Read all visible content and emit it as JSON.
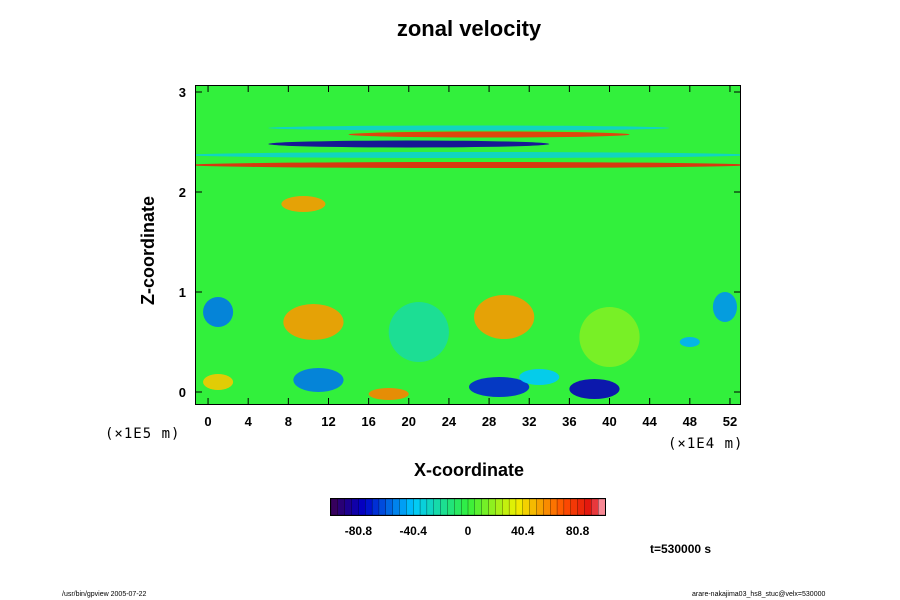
{
  "chart_data": {
    "type": "heatmap",
    "title": "zonal velocity",
    "xlabel": "X-coordinate",
    "ylabel": "Z-coordinate",
    "x_ticks": [
      "0",
      "4",
      "8",
      "12",
      "16",
      "20",
      "24",
      "28",
      "32",
      "36",
      "40",
      "44",
      "48",
      "52"
    ],
    "x_tick_values": [
      0,
      4,
      8,
      12,
      16,
      20,
      24,
      28,
      32,
      36,
      40,
      44,
      48,
      52
    ],
    "y_ticks": [
      "0",
      "1",
      "2",
      "3"
    ],
    "y_tick_values": [
      0,
      1,
      2,
      3
    ],
    "xlim": [
      -1.2,
      53
    ],
    "ylim": [
      -0.12,
      3.06
    ],
    "x_unit": "(×1E4 m)",
    "y_unit": "(×1E5 m)",
    "colorbar": {
      "labels": [
        "-80.8",
        "-40.4",
        "0",
        "40.4",
        "80.8"
      ],
      "label_values": [
        -80.8,
        -40.4,
        0,
        40.4,
        80.8
      ],
      "range": [
        -101,
        101
      ]
    },
    "background_value": 0,
    "features": [
      {
        "x": 20,
        "z": 2.48,
        "value": -85,
        "rx": 14,
        "rz": 0.035
      },
      {
        "x": 28,
        "z": 2.575,
        "value": 80,
        "rx": 14,
        "rz": 0.03
      },
      {
        "x": 26,
        "z": 2.27,
        "value": 85,
        "rx": 28,
        "rz": 0.03
      },
      {
        "x": 26,
        "z": 2.37,
        "value": -30,
        "rx": 28,
        "rz": 0.03
      },
      {
        "x": 26,
        "z": 2.64,
        "value": -30,
        "rx": 20,
        "rz": 0.025
      },
      {
        "x": 9.5,
        "z": 1.88,
        "value": 55,
        "rx": 2.2,
        "rz": 0.08
      },
      {
        "x": 10.5,
        "z": 0.7,
        "value": 55,
        "rx": 3,
        "rz": 0.18
      },
      {
        "x": 29.5,
        "z": 0.75,
        "value": 55,
        "rx": 3,
        "rz": 0.22
      },
      {
        "x": 38.5,
        "z": 0.03,
        "value": -80,
        "rx": 2.5,
        "rz": 0.1
      },
      {
        "x": 29,
        "z": 0.05,
        "value": -70,
        "rx": 3,
        "rz": 0.1
      },
      {
        "x": 11,
        "z": 0.12,
        "value": -55,
        "rx": 2.5,
        "rz": 0.12
      },
      {
        "x": 1,
        "z": 0.8,
        "value": -55,
        "rx": 1.5,
        "rz": 0.15
      },
      {
        "x": 51.5,
        "z": 0.85,
        "value": -50,
        "rx": 1.2,
        "rz": 0.15
      },
      {
        "x": 18,
        "z": -0.02,
        "value": 60,
        "rx": 2,
        "rz": 0.06
      },
      {
        "x": 1,
        "z": 0.1,
        "value": 45,
        "rx": 1.5,
        "rz": 0.08
      },
      {
        "x": 33,
        "z": 0.15,
        "value": -40,
        "rx": 2,
        "rz": 0.08
      },
      {
        "x": 48,
        "z": 0.5,
        "value": -45,
        "rx": 1,
        "rz": 0.05
      },
      {
        "x": 21,
        "z": 0.6,
        "value": -20,
        "rx": 3,
        "rz": 0.3
      },
      {
        "x": 40,
        "z": 0.55,
        "value": 15,
        "rx": 3,
        "rz": 0.3
      }
    ]
  },
  "time_label": "t=530000 s",
  "footer_left": "/usr/bin/gpview 2005-07-22",
  "footer_right": "arare-nakajima03_hs8_stuc@velx=530000"
}
